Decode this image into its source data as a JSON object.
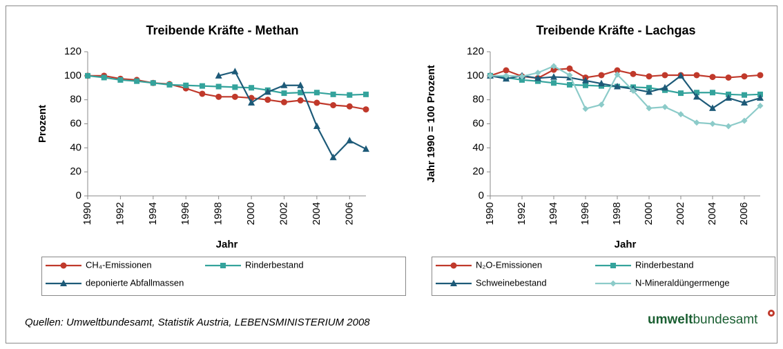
{
  "chart_data": [
    {
      "type": "line",
      "title": "Treibende Kräfte - Methan",
      "x_label": "Jahr",
      "y_label": "Prozent",
      "x": [
        1990,
        1991,
        1992,
        1993,
        1994,
        1995,
        1996,
        1997,
        1998,
        1999,
        2000,
        2001,
        2002,
        2003,
        2004,
        2005,
        2006,
        2007
      ],
      "xlim": [
        1990,
        2007
      ],
      "xticks": [
        1990,
        1992,
        1994,
        1996,
        1998,
        2000,
        2002,
        2004,
        2006
      ],
      "ylim": [
        0,
        120
      ],
      "yticks": [
        0,
        20,
        40,
        60,
        80,
        100,
        120
      ],
      "grid": false,
      "series": [
        {
          "name": "CH₄-Emissionen",
          "color": "#c0392b",
          "marker": "circle",
          "values": [
            100,
            100,
            97.5,
            96.5,
            94,
            93,
            89.5,
            85,
            82.5,
            82.5,
            81.5,
            80,
            78,
            79.5,
            77.5,
            75.5,
            74.5,
            72
          ]
        },
        {
          "name": "Rinderbestand",
          "color": "#34a39c",
          "marker": "square",
          "values": [
            100,
            98.5,
            96.5,
            95.5,
            94,
            92.5,
            92,
            91.5,
            91,
            90.5,
            90,
            88,
            85.5,
            86,
            86,
            84.5,
            84,
            84.5
          ]
        },
        {
          "name": "deponierte Abfallmassen",
          "color": "#1d5a78",
          "marker": "triangle",
          "values": [
            null,
            null,
            null,
            null,
            null,
            null,
            null,
            null,
            100,
            103.5,
            77.5,
            86.5,
            92,
            92,
            58,
            32,
            46,
            39
          ]
        }
      ]
    },
    {
      "type": "line",
      "title": "Treibende Kräfte - Lachgas",
      "x_label": "Jahr",
      "y_label": "Jahr 1990 = 100 Prozent",
      "x": [
        1990,
        1991,
        1992,
        1993,
        1994,
        1995,
        1996,
        1997,
        1998,
        1999,
        2000,
        2001,
        2002,
        2003,
        2004,
        2005,
        2006,
        2007
      ],
      "xlim": [
        1990,
        2007
      ],
      "xticks": [
        1990,
        1992,
        1994,
        1996,
        1998,
        2000,
        2002,
        2004,
        2006
      ],
      "ylim": [
        0,
        120
      ],
      "yticks": [
        0,
        20,
        40,
        60,
        80,
        100,
        120
      ],
      "grid": false,
      "series": [
        {
          "name": "N₂O-Emissionen",
          "color": "#c0392b",
          "marker": "circle",
          "values": [
            100,
            104.5,
            99.5,
            98,
            105,
            106,
            98.5,
            100.5,
            104.5,
            101.5,
            99.5,
            100.5,
            100.5,
            100.5,
            99,
            98.5,
            99.5,
            100.5
          ]
        },
        {
          "name": "Rinderbestand",
          "color": "#34a39c",
          "marker": "square",
          "values": [
            100,
            98.5,
            96.5,
            95.5,
            94,
            92.5,
            92,
            91.5,
            91,
            90.5,
            90,
            88,
            85.5,
            86,
            86,
            84.5,
            84,
            84.5
          ]
        },
        {
          "name": "Schweinebestand",
          "color": "#1d5a78",
          "marker": "triangle",
          "values": [
            100,
            97.5,
            100,
            98,
            99,
            98.5,
            96,
            93.5,
            91,
            89,
            86.5,
            90,
            100,
            82.5,
            73,
            81.5,
            77.5,
            81.5
          ]
        },
        {
          "name": "N-Mineraldüngermenge",
          "color": "#8ccbc9",
          "marker": "diamond",
          "values": [
            100,
            100,
            99.5,
            102.5,
            108,
            100.5,
            72.5,
            76,
            101,
            87.5,
            73,
            74,
            68,
            61,
            60,
            58,
            62.5,
            75
          ]
        }
      ]
    }
  ],
  "source": "Quellen: Umweltbundesamt, Statistik Austria, LEBENSMINISTERIUM 2008",
  "logo": {
    "bold": "umwelt",
    "regular": "bundesamt"
  }
}
